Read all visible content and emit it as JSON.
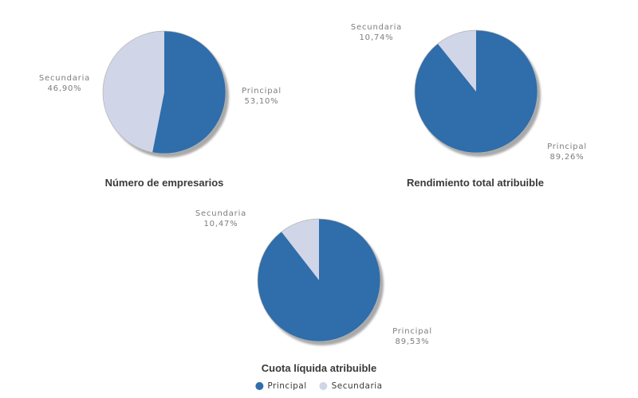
{
  "background": "#ffffff",
  "colors": {
    "principal": "#2F6DAB",
    "secundaria": "#D0D5E7",
    "shadow": "#9B9B9B",
    "outline": "#B3B3B3",
    "slice_label_text": "#7D7D7D",
    "title_text": "#3A3A3A",
    "legend_text": "#3A3A3A"
  },
  "legend": {
    "items": [
      {
        "label": "Principal",
        "color_key": "principal"
      },
      {
        "label": "Secundaria",
        "color_key": "secundaria"
      }
    ]
  },
  "chart_data": [
    {
      "type": "pie",
      "title": "Número de empresarios",
      "labels": [
        "Principal",
        "Secundaria"
      ],
      "values": [
        53.1,
        46.9
      ],
      "value_displays": [
        "53,10%",
        "46,90%"
      ],
      "colors": [
        "#2F6DAB",
        "#D0D5E7"
      ],
      "start_angle_deg": 0,
      "direction": "clockwise",
      "legend_position": "none"
    },
    {
      "type": "pie",
      "title": "Rendimiento total atribuible",
      "labels": [
        "Principal",
        "Secundaria"
      ],
      "values": [
        89.26,
        10.74
      ],
      "value_displays": [
        "89,26%",
        "10,74%"
      ],
      "colors": [
        "#2F6DAB",
        "#D0D5E7"
      ],
      "start_angle_deg": 0,
      "direction": "clockwise",
      "legend_position": "none"
    },
    {
      "type": "pie",
      "title": "Cuota líquida atribuible",
      "labels": [
        "Principal",
        "Secundaria"
      ],
      "values": [
        89.53,
        10.47
      ],
      "value_displays": [
        "89,53%",
        "10,47%"
      ],
      "colors": [
        "#2F6DAB",
        "#D0D5E7"
      ],
      "start_angle_deg": 0,
      "direction": "clockwise",
      "legend_position": "bottom"
    }
  ]
}
